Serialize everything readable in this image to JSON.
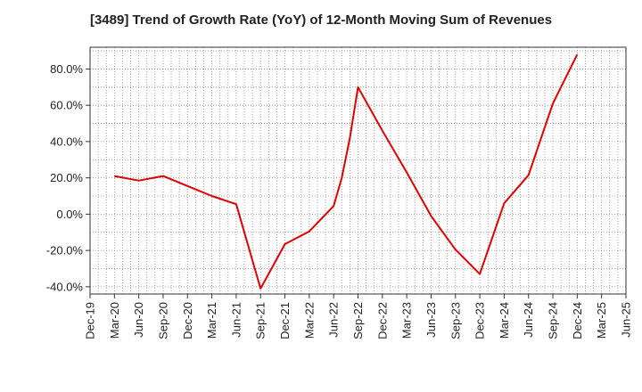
{
  "chart_data": {
    "type": "line",
    "title": "[3489]  Trend of Growth Rate (YoY) of 12-Month Moving Sum of Revenues",
    "xlabel": "",
    "ylabel": "",
    "x_ticks": [
      "Dec-19",
      "Mar-20",
      "Jun-20",
      "Sep-20",
      "Dec-20",
      "Mar-21",
      "Jun-21",
      "Sep-21",
      "Dec-21",
      "Mar-22",
      "Jun-22",
      "Sep-22",
      "Dec-22",
      "Mar-23",
      "Jun-23",
      "Sep-23",
      "Dec-23",
      "Mar-24",
      "Jun-24",
      "Sep-24",
      "Dec-24",
      "Mar-25",
      "Jun-25"
    ],
    "y_ticks": [
      "80.0%",
      "60.0%",
      "40.0%",
      "20.0%",
      "0.0%",
      "-20.0%",
      "-40.0%"
    ],
    "y_tick_values": [
      80,
      60,
      40,
      20,
      0,
      -20,
      -40
    ],
    "ylim": [
      -44,
      92
    ],
    "x_range": [
      "Dec-19",
      "Jun-25"
    ],
    "grid": true,
    "grid_style": "dotted",
    "line_color": "#dd0000",
    "series": [
      {
        "x": [
          "Mar-20",
          "Jun-20",
          "Sep-20",
          "Dec-20",
          "Mar-21",
          "Jun-21",
          "Sep-21",
          "Dec-21",
          "Mar-22",
          "Jun-22",
          "Jul-22",
          "Aug-22",
          "Sep-22",
          "Dec-22",
          "Mar-23",
          "Jun-23",
          "Sep-23",
          "Dec-23",
          "Mar-24",
          "Jun-24",
          "Sep-24",
          "Dec-24"
        ],
        "values": [
          21.0,
          18.5,
          21.0,
          15.5,
          10.0,
          5.5,
          -41.0,
          -16.5,
          -9.5,
          4.5,
          20.0,
          42.0,
          70.0,
          46.0,
          23.0,
          -1.0,
          -19.5,
          -33.0,
          6.0,
          21.5,
          61.0,
          88.0
        ]
      }
    ]
  }
}
